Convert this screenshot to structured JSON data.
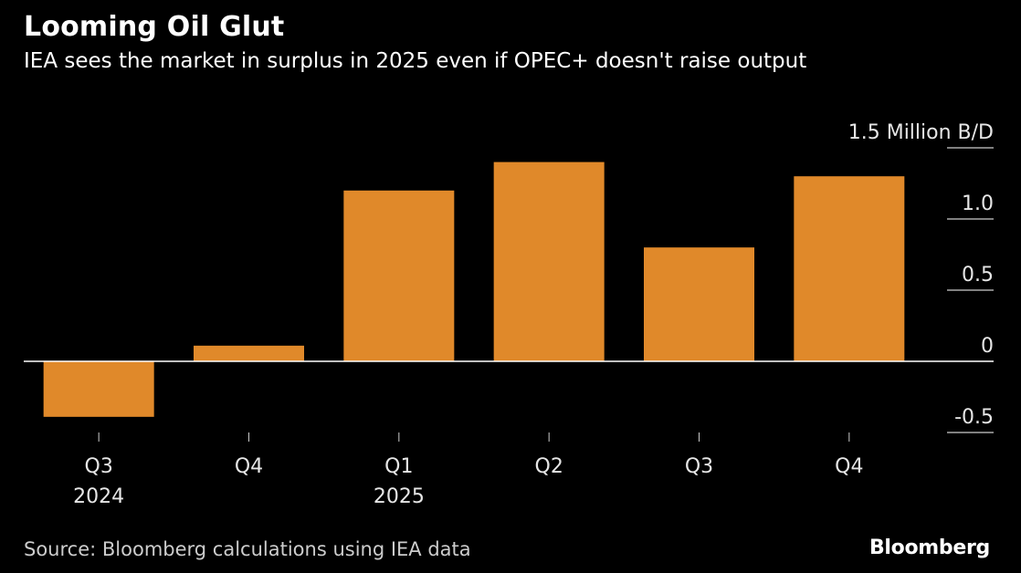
{
  "title": "Looming Oil Glut",
  "subtitle": "IEA sees the market in surplus in 2025 even if OPEC+ doesn't raise output",
  "source": "Source: Bloomberg calculations using IEA data",
  "brand": "Bloomberg",
  "colors": {
    "bar": "#e0892a",
    "background": "#000000",
    "text": "#ffffff",
    "axis": "#ffffff"
  },
  "chart_data": {
    "type": "bar",
    "categories": [
      "Q3",
      "Q4",
      "Q1",
      "Q2",
      "Q3",
      "Q4"
    ],
    "category_sublabels": [
      "2024",
      "",
      "2025",
      "",
      "",
      ""
    ],
    "values": [
      -0.39,
      0.11,
      1.2,
      1.4,
      0.8,
      1.3
    ],
    "ylim": [
      -0.5,
      1.5
    ],
    "yticks": [
      -0.5,
      0,
      0.5,
      1.0,
      1.5
    ],
    "ytick_labels": [
      "-0.5",
      "0",
      "0.5",
      "1.0",
      "1.5 Million B/D"
    ],
    "ylabel": "",
    "xlabel": "",
    "grid": false,
    "axis_position": "right"
  }
}
